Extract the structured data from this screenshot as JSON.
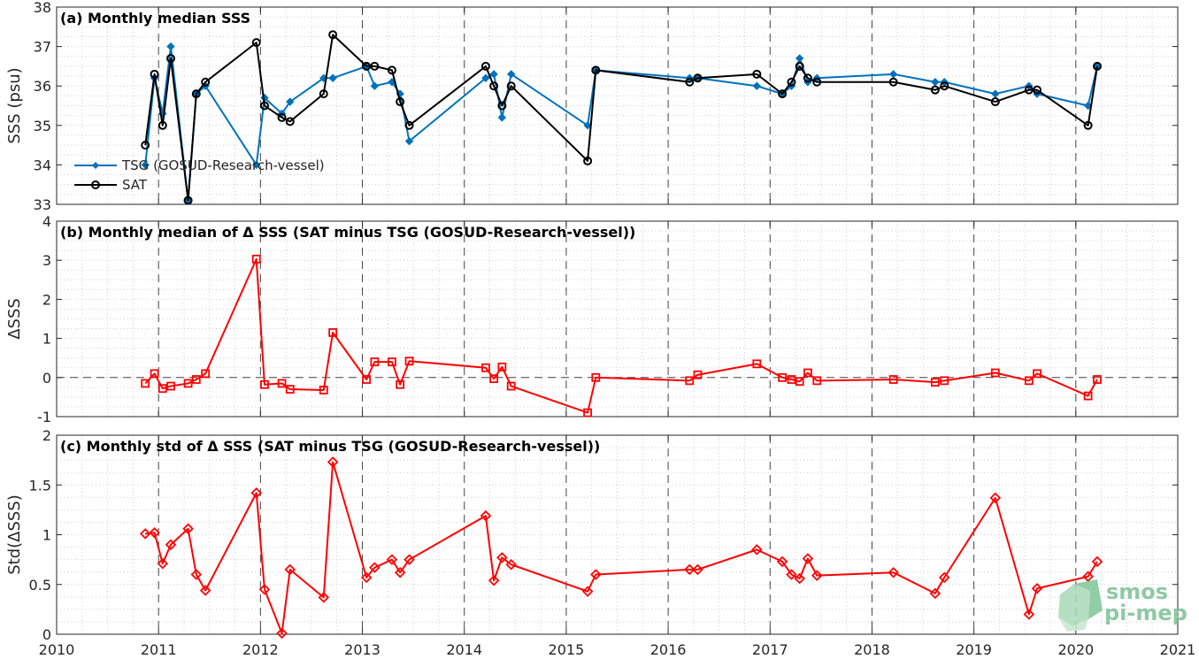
{
  "chart_data": [
    {
      "type": "line",
      "title": "(a) Monthly median SSS",
      "ylabel": "SSS (psu)",
      "xlim": [
        2010,
        2021
      ],
      "ylim": [
        33,
        38
      ],
      "yticks": [
        33,
        34,
        35,
        36,
        37,
        38
      ],
      "grid": true,
      "legend_position": "bottom-left",
      "series": [
        {
          "name": "TSG (GOSUD-Research-vessel)",
          "color": "#0072BD",
          "marker": "diamond",
          "x": [
            2010.87,
            2010.96,
            2011.04,
            2011.12,
            2011.29,
            2011.37,
            2011.46,
            2011.96,
            2012.04,
            2012.21,
            2012.29,
            2012.62,
            2012.71,
            2013.04,
            2013.12,
            2013.29,
            2013.37,
            2013.46,
            2014.21,
            2014.29,
            2014.37,
            2014.46,
            2015.21,
            2015.29,
            2016.21,
            2016.29,
            2016.87,
            2017.12,
            2017.21,
            2017.29,
            2017.37,
            2017.46,
            2018.21,
            2018.62,
            2018.71,
            2019.21,
            2019.54,
            2019.62,
            2020.12,
            2020.21
          ],
          "values": [
            34.0,
            36.2,
            35.3,
            37.0,
            33.1,
            35.8,
            36.0,
            34.0,
            35.7,
            35.3,
            35.6,
            36.2,
            36.2,
            36.5,
            36.0,
            36.1,
            35.8,
            34.6,
            36.2,
            36.3,
            35.2,
            36.3,
            35.0,
            36.4,
            36.2,
            36.2,
            36.0,
            35.8,
            36.0,
            36.7,
            36.1,
            36.2,
            36.3,
            36.1,
            36.1,
            35.8,
            36.0,
            35.8,
            35.5,
            36.5
          ]
        },
        {
          "name": "SAT",
          "color": "#000000",
          "marker": "circle",
          "x": [
            2010.87,
            2010.96,
            2011.04,
            2011.12,
            2011.29,
            2011.37,
            2011.46,
            2011.96,
            2012.04,
            2012.21,
            2012.29,
            2012.62,
            2012.71,
            2013.04,
            2013.12,
            2013.29,
            2013.37,
            2013.46,
            2014.21,
            2014.29,
            2014.37,
            2014.46,
            2015.21,
            2015.29,
            2016.21,
            2016.29,
            2016.87,
            2017.12,
            2017.21,
            2017.29,
            2017.37,
            2017.46,
            2018.21,
            2018.62,
            2018.71,
            2019.21,
            2019.54,
            2019.62,
            2020.12,
            2020.21
          ],
          "values": [
            34.5,
            36.3,
            35.0,
            36.7,
            33.1,
            35.8,
            36.1,
            37.1,
            35.5,
            35.2,
            35.1,
            35.8,
            37.3,
            36.5,
            36.5,
            36.4,
            35.6,
            35.0,
            36.5,
            36.0,
            35.5,
            36.0,
            34.1,
            36.4,
            36.1,
            36.2,
            36.3,
            35.8,
            36.1,
            36.5,
            36.2,
            36.1,
            36.1,
            35.9,
            36.0,
            35.6,
            35.9,
            35.9,
            35.0,
            36.5
          ]
        }
      ]
    },
    {
      "type": "line",
      "title": "(b) Monthly median of Δ SSS (SAT minus TSG (GOSUD-Research-vessel))",
      "ylabel": "ΔSSS",
      "xlim": [
        2010,
        2021
      ],
      "ylim": [
        -1,
        4
      ],
      "yticks": [
        -1,
        0,
        1,
        2,
        3,
        4
      ],
      "grid": true,
      "zero_line": true,
      "series": [
        {
          "name": "",
          "color": "#FF0000",
          "marker": "square",
          "x": [
            2010.87,
            2010.96,
            2011.04,
            2011.12,
            2011.29,
            2011.37,
            2011.46,
            2011.96,
            2012.04,
            2012.21,
            2012.29,
            2012.62,
            2012.71,
            2013.04,
            2013.12,
            2013.29,
            2013.37,
            2013.46,
            2014.21,
            2014.29,
            2014.37,
            2014.46,
            2015.21,
            2015.29,
            2016.21,
            2016.29,
            2016.87,
            2017.12,
            2017.21,
            2017.29,
            2017.37,
            2017.46,
            2018.21,
            2018.62,
            2018.71,
            2019.21,
            2019.54,
            2019.62,
            2020.12,
            2020.21
          ],
          "values": [
            -0.15,
            0.1,
            -0.28,
            -0.22,
            -0.15,
            -0.05,
            0.1,
            3.03,
            -0.18,
            -0.15,
            -0.3,
            -0.32,
            1.15,
            -0.05,
            0.4,
            0.4,
            -0.18,
            0.42,
            0.25,
            -0.03,
            0.27,
            -0.22,
            -0.9,
            0.0,
            -0.08,
            0.07,
            0.35,
            0.0,
            -0.05,
            -0.1,
            0.12,
            -0.08,
            -0.05,
            -0.12,
            -0.08,
            0.12,
            -0.08,
            0.1,
            -0.47,
            -0.05
          ]
        }
      ]
    },
    {
      "type": "line",
      "title": "(c) Monthly std of Δ SSS (SAT minus TSG (GOSUD-Research-vessel))",
      "ylabel": "Std(ΔSSS)",
      "xlim": [
        2010,
        2021
      ],
      "ylim": [
        0,
        2
      ],
      "yticks": [
        0,
        0.5,
        1,
        1.5,
        2
      ],
      "xticks": [
        2010,
        2011,
        2012,
        2013,
        2014,
        2015,
        2016,
        2017,
        2018,
        2019,
        2020,
        2021
      ],
      "grid": true,
      "series": [
        {
          "name": "",
          "color": "#FF0000",
          "marker": "diamond",
          "x": [
            2010.87,
            2010.96,
            2011.04,
            2011.12,
            2011.29,
            2011.37,
            2011.46,
            2011.96,
            2012.04,
            2012.21,
            2012.29,
            2012.62,
            2012.71,
            2013.04,
            2013.12,
            2013.29,
            2013.37,
            2013.46,
            2014.21,
            2014.29,
            2014.37,
            2014.46,
            2015.21,
            2015.29,
            2016.21,
            2016.29,
            2016.87,
            2017.12,
            2017.21,
            2017.29,
            2017.37,
            2017.46,
            2018.21,
            2018.62,
            2018.71,
            2019.21,
            2019.54,
            2019.62,
            2020.12,
            2020.21
          ],
          "values": [
            1.01,
            1.02,
            0.71,
            0.9,
            1.06,
            0.6,
            0.44,
            1.42,
            0.45,
            0.01,
            0.65,
            0.37,
            1.73,
            0.57,
            0.67,
            0.75,
            0.62,
            0.75,
            1.19,
            0.54,
            0.77,
            0.7,
            0.43,
            0.6,
            0.65,
            0.65,
            0.85,
            0.73,
            0.6,
            0.56,
            0.76,
            0.59,
            0.62,
            0.41,
            0.57,
            1.37,
            0.2,
            0.46,
            0.58,
            0.73
          ]
        }
      ]
    }
  ],
  "logo": {
    "line1": "smos",
    "line2": "pi-mep"
  }
}
